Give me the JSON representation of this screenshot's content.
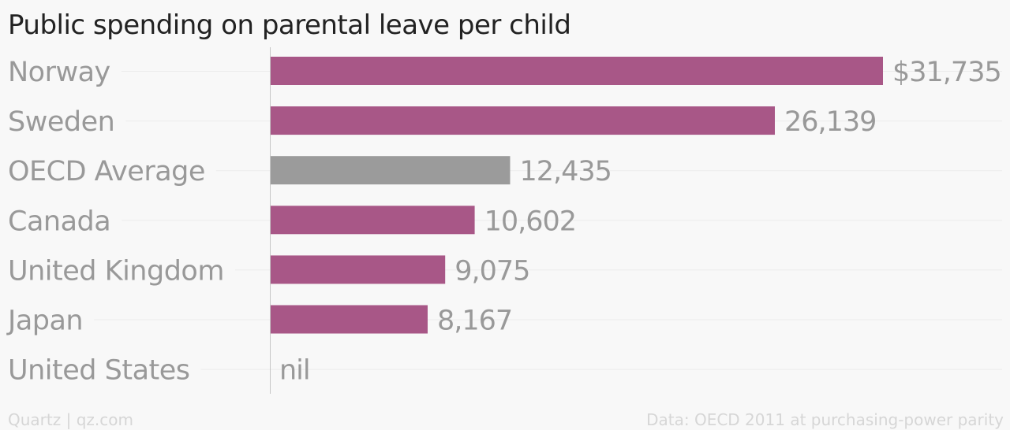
{
  "chart_data": {
    "type": "bar",
    "orientation": "horizontal",
    "title": "Public spending on parental leave per child",
    "categories": [
      "Norway",
      "Sweden",
      "OECD Average",
      "Canada",
      "United Kingdom",
      "Japan",
      "United States"
    ],
    "values": [
      31735,
      26139,
      12435,
      10602,
      9075,
      8167,
      null
    ],
    "value_labels": [
      "$31,735",
      "26,139",
      "12,435",
      "10,602",
      "9,075",
      "8,167",
      "nil"
    ],
    "xlim": [
      0,
      31735
    ],
    "grid": true,
    "colors": {
      "default": "#a85787",
      "highlight": "#9b9b9b",
      "highlight_category": "OECD Average"
    }
  },
  "footer": {
    "left": "Quartz | qz.com",
    "right": "Data: OECD 2011 at purchasing-power parity"
  }
}
